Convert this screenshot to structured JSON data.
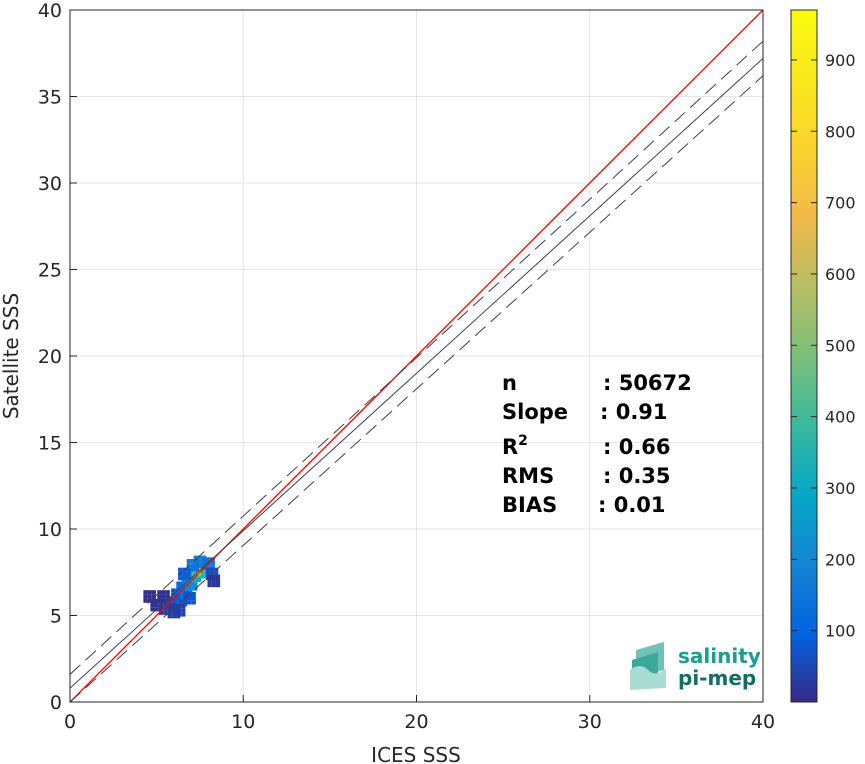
{
  "chart_data": {
    "type": "scatter",
    "subtype": "2d-density-histogram",
    "xlabel": "ICES SSS",
    "ylabel": "Satellite SSS",
    "xlim": [
      0,
      40
    ],
    "ylim": [
      0,
      40
    ],
    "xticks": [
      0,
      10,
      20,
      30,
      40
    ],
    "yticks": [
      0,
      5,
      10,
      15,
      20,
      25,
      30,
      35,
      40
    ],
    "grid": true,
    "colorbar": {
      "range": [
        0,
        970
      ],
      "ticks": [
        100,
        200,
        300,
        400,
        500,
        600,
        700,
        800,
        900
      ],
      "colormap": "parula"
    },
    "lines": [
      {
        "role": "identity",
        "color": "#ff0000",
        "style": "solid",
        "points": [
          [
            0,
            0
          ],
          [
            40,
            40
          ]
        ]
      },
      {
        "role": "regression",
        "color": "#404040",
        "style": "solid",
        "points": [
          [
            0,
            0.8
          ],
          [
            40,
            37.2
          ]
        ]
      },
      {
        "role": "regression-upper",
        "color": "#404040",
        "style": "dashed",
        "points": [
          [
            0,
            1.6
          ],
          [
            40,
            38.2
          ]
        ]
      },
      {
        "role": "regression-lower",
        "color": "#404040",
        "style": "dashed",
        "points": [
          [
            0,
            0.0
          ],
          [
            40,
            36.2
          ]
        ]
      }
    ],
    "density_cells": [
      {
        "x": 5.4,
        "y": 6.1,
        "count": 8
      },
      {
        "x": 4.6,
        "y": 6.1,
        "count": 6
      },
      {
        "x": 5.0,
        "y": 5.6,
        "count": 12
      },
      {
        "x": 5.5,
        "y": 5.4,
        "count": 25
      },
      {
        "x": 5.8,
        "y": 5.7,
        "count": 40
      },
      {
        "x": 6.0,
        "y": 5.2,
        "count": 30
      },
      {
        "x": 6.2,
        "y": 6.2,
        "count": 60
      },
      {
        "x": 6.4,
        "y": 5.9,
        "count": 80
      },
      {
        "x": 6.5,
        "y": 6.6,
        "count": 110
      },
      {
        "x": 6.7,
        "y": 6.3,
        "count": 130
      },
      {
        "x": 6.8,
        "y": 7.0,
        "count": 160
      },
      {
        "x": 7.0,
        "y": 6.8,
        "count": 210
      },
      {
        "x": 7.2,
        "y": 7.3,
        "count": 300
      },
      {
        "x": 7.4,
        "y": 7.6,
        "count": 420
      },
      {
        "x": 7.6,
        "y": 7.9,
        "count": 600
      },
      {
        "x": 7.7,
        "y": 7.7,
        "count": 970
      },
      {
        "x": 7.9,
        "y": 7.5,
        "count": 350
      },
      {
        "x": 7.5,
        "y": 8.1,
        "count": 180
      },
      {
        "x": 8.0,
        "y": 8.0,
        "count": 140
      },
      {
        "x": 8.2,
        "y": 7.4,
        "count": 60
      },
      {
        "x": 8.3,
        "y": 7.0,
        "count": 20
      },
      {
        "x": 7.1,
        "y": 7.9,
        "count": 150
      },
      {
        "x": 6.6,
        "y": 7.4,
        "count": 90
      },
      {
        "x": 6.3,
        "y": 5.3,
        "count": 35
      },
      {
        "x": 6.9,
        "y": 6.0,
        "count": 70
      }
    ],
    "stats": [
      {
        "label": "n",
        "value": "50672"
      },
      {
        "label": "Slope",
        "value": "0.91"
      },
      {
        "label": "R",
        "sup": "2",
        "value": "0.66"
      },
      {
        "label": "RMS",
        "value": "0.35"
      },
      {
        "label": "BIAS",
        "value": "0.01"
      }
    ]
  },
  "logo": {
    "line1": "salinity",
    "line2": "pi-mep"
  },
  "colors": {
    "identity": "#ff0000",
    "regression": "#404040",
    "logo_teal": "#1a9e8f",
    "logo_dark": "#0f6e66"
  }
}
